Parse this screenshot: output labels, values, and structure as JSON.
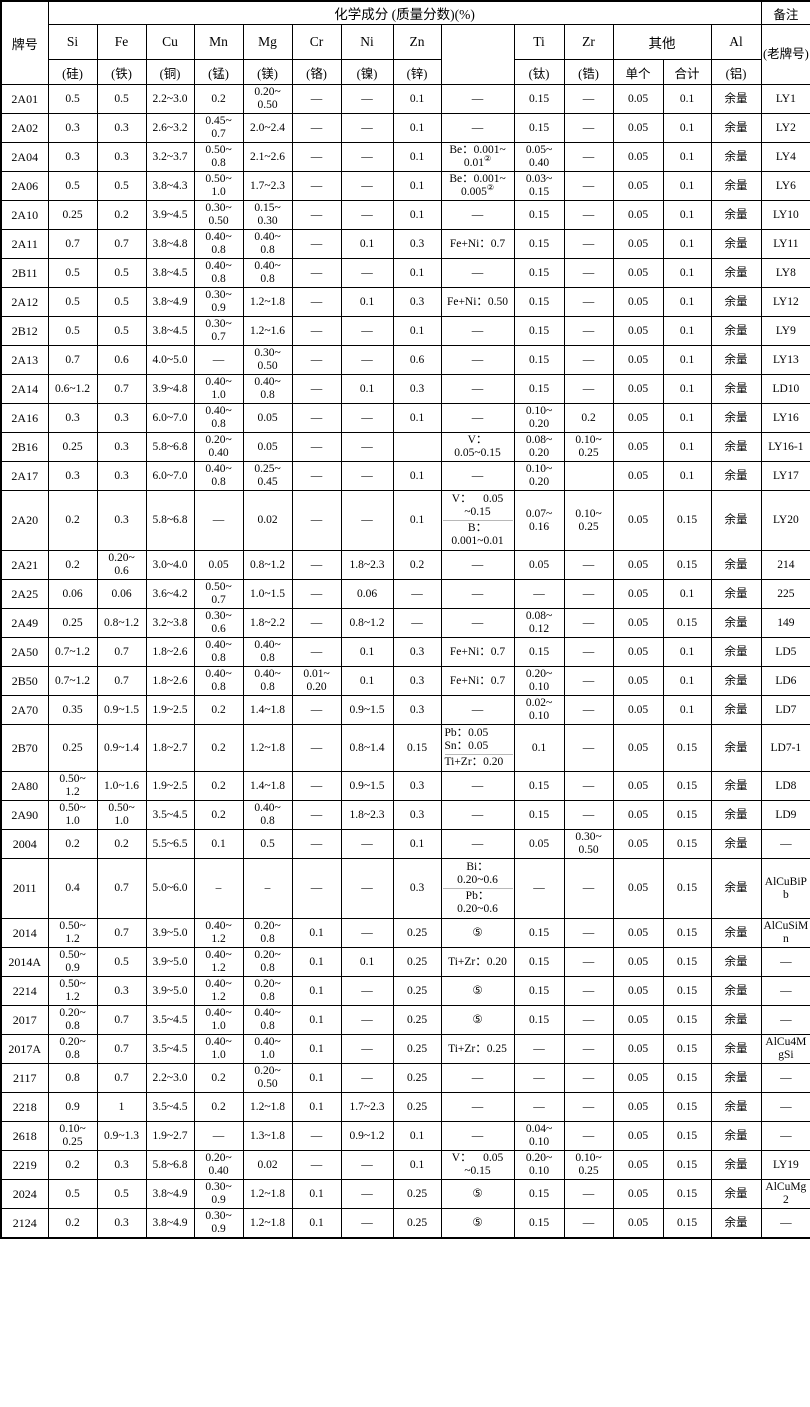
{
  "table": {
    "title": "化学成分 (质量分数)(%)",
    "grade_header": "牌号",
    "remark_header": "备注",
    "remark_subheader": "(老牌号)",
    "other_group_label": "其他",
    "other_sub_labels": [
      "单个",
      "合计"
    ],
    "element_columns": [
      {
        "symbol": "Si",
        "name": "(硅)"
      },
      {
        "symbol": "Fe",
        "name": "(铁)"
      },
      {
        "symbol": "Cu",
        "name": "(铜)"
      },
      {
        "symbol": "Mn",
        "name": "(锰)"
      },
      {
        "symbol": "Mg",
        "name": "(镁)"
      },
      {
        "symbol": "Cr",
        "name": "(铬)"
      },
      {
        "symbol": "Ni",
        "name": "(镍)"
      },
      {
        "symbol": "Zn",
        "name": "(锌)"
      },
      {
        "symbol": "Ti",
        "name": "(钛)"
      },
      {
        "symbol": "Zr",
        "name": "(锆)"
      },
      {
        "symbol": "Al",
        "name": "(铝)"
      }
    ],
    "rows": [
      {
        "grade": "2A01",
        "cells": [
          "0.5",
          "0.5",
          "2.2~3.0",
          "0.2",
          "0.20~\n0.50",
          "—",
          "—",
          "0.1",
          "—",
          "0.15",
          "—",
          "0.05",
          "0.1",
          "余量"
        ],
        "remark": "LY1"
      },
      {
        "grade": "2A02",
        "cells": [
          "0.3",
          "0.3",
          "2.6~3.2",
          "0.45~\n0.7",
          "2.0~2.4",
          "—",
          "—",
          "0.1",
          "—",
          "0.15",
          "—",
          "0.05",
          "0.1",
          "余量"
        ],
        "remark": "LY2"
      },
      {
        "grade": "2A04",
        "cells": [
          "0.3",
          "0.3",
          "3.2~3.7",
          "0.50~\n0.8",
          "2.1~2.6",
          "—",
          "—",
          "0.1",
          "Be：0.001~\n0.01②",
          "0.05~\n0.40",
          "—",
          "0.05",
          "0.1",
          "余量"
        ],
        "remark": "LY4"
      },
      {
        "grade": "2A06",
        "cells": [
          "0.5",
          "0.5",
          "3.8~4.3",
          "0.50~\n1.0",
          "1.7~2.3",
          "—",
          "—",
          "0.1",
          "Be：0.001~\n0.005②",
          "0.03~\n0.15",
          "—",
          "0.05",
          "0.1",
          "余量"
        ],
        "remark": "LY6"
      },
      {
        "grade": "2A10",
        "cells": [
          "0.25",
          "0.2",
          "3.9~4.5",
          "0.30~\n0.50",
          "0.15~\n0.30",
          "—",
          "—",
          "0.1",
          "—",
          "0.15",
          "—",
          "0.05",
          "0.1",
          "余量"
        ],
        "remark": "LY10"
      },
      {
        "grade": "2A11",
        "cells": [
          "0.7",
          "0.7",
          "3.8~4.8",
          "0.40~\n0.8",
          "0.40~\n0.8",
          "—",
          "0.1",
          "0.3",
          "Fe+Ni：0.7",
          "0.15",
          "—",
          "0.05",
          "0.1",
          "余量"
        ],
        "remark": "LY11"
      },
      {
        "grade": "2B11",
        "cells": [
          "0.5",
          "0.5",
          "3.8~4.5",
          "0.40~\n0.8",
          "0.40~\n0.8",
          "—",
          "—",
          "0.1",
          "—",
          "0.15",
          "—",
          "0.05",
          "0.1",
          "余量"
        ],
        "remark": "LY8"
      },
      {
        "grade": "2A12",
        "cells": [
          "0.5",
          "0.5",
          "3.8~4.9",
          "0.30~\n0.9",
          "1.2~1.8",
          "—",
          "0.1",
          "0.3",
          "Fe+Ni：0.50",
          "0.15",
          "—",
          "0.05",
          "0.1",
          "余量"
        ],
        "remark": "LY12"
      },
      {
        "grade": "2B12",
        "cells": [
          "0.5",
          "0.5",
          "3.8~4.5",
          "0.30~\n0.7",
          "1.2~1.6",
          "—",
          "—",
          "0.1",
          "—",
          "0.15",
          "—",
          "0.05",
          "0.1",
          "余量"
        ],
        "remark": "LY9"
      },
      {
        "grade": "2A13",
        "cells": [
          "0.7",
          "0.6",
          "4.0~5.0",
          "—",
          "0.30~\n0.50",
          "—",
          "—",
          "0.6",
          "—",
          "0.15",
          "—",
          "0.05",
          "0.1",
          "余量"
        ],
        "remark": "LY13"
      },
      {
        "grade": "2A14",
        "cells": [
          "0.6~1.2",
          "0.7",
          "3.9~4.8",
          "0.40~\n1.0",
          "0.40~\n0.8",
          "—",
          "0.1",
          "0.3",
          "—",
          "0.15",
          "—",
          "0.05",
          "0.1",
          "余量"
        ],
        "remark": "LD10"
      },
      {
        "grade": "2A16",
        "cells": [
          "0.3",
          "0.3",
          "6.0~7.0",
          "0.40~\n0.8",
          "0.05",
          "—",
          "—",
          "0.1",
          "—",
          "0.10~\n0.20",
          "0.2",
          "0.05",
          "0.1",
          "余量"
        ],
        "remark": "LY16"
      },
      {
        "grade": "2B16",
        "cells": [
          "0.25",
          "0.3",
          "5.8~6.8",
          "0.20~\n0.40",
          "0.05",
          "—",
          "—",
          "",
          "V：\n0.05~0.15",
          "0.08~\n0.20",
          "0.10~\n0.25",
          "0.05",
          "0.1",
          "余量"
        ],
        "remark": "LY16-1"
      },
      {
        "grade": "2A17",
        "cells": [
          "0.3",
          "0.3",
          "6.0~7.0",
          "0.40~\n0.8",
          "0.25~\n0.45",
          "—",
          "—",
          "0.1",
          "—",
          "0.10~\n0.20",
          "",
          "0.05",
          "0.1",
          "余量"
        ],
        "remark": "LY17"
      },
      {
        "grade": "2A20",
        "cells": [
          "0.2",
          "0.3",
          "5.8~6.8",
          "—",
          "0.02",
          "—",
          "—",
          "0.1",
          {
            "parts": [
              "V：    0.05\n~0.15",
              "B：\n0.001~0.01"
            ]
          },
          "0.07~\n0.16",
          "0.10~\n0.25",
          "0.05",
          "0.15",
          "余量"
        ],
        "remark": "LY20"
      },
      {
        "grade": "2A21",
        "cells": [
          "0.2",
          "0.20~\n0.6",
          "3.0~4.0",
          "0.05",
          "0.8~1.2",
          "—",
          "1.8~2.3",
          "0.2",
          "—",
          "0.05",
          "—",
          "0.05",
          "0.15",
          "余量"
        ],
        "remark": "214"
      },
      {
        "grade": "2A25",
        "cells": [
          "0.06",
          "0.06",
          "3.6~4.2",
          "0.50~\n0.7",
          "1.0~1.5",
          "—",
          "0.06",
          "—",
          "—",
          "—",
          "—",
          "0.05",
          "0.1",
          "余量"
        ],
        "remark": "225"
      },
      {
        "grade": "2A49",
        "cells": [
          "0.25",
          "0.8~1.2",
          "3.2~3.8",
          "0.30~\n0.6",
          "1.8~2.2",
          "—",
          "0.8~1.2",
          "—",
          "—",
          "0.08~\n0.12",
          "—",
          "0.05",
          "0.15",
          "余量"
        ],
        "remark": "149"
      },
      {
        "grade": "2A50",
        "cells": [
          "0.7~1.2",
          "0.7",
          "1.8~2.6",
          "0.40~\n0.8",
          "0.40~\n0.8",
          "—",
          "0.1",
          "0.3",
          "Fe+Ni：0.7",
          "0.15",
          "—",
          "0.05",
          "0.1",
          "余量"
        ],
        "remark": "LD5"
      },
      {
        "grade": "2B50",
        "cells": [
          "0.7~1.2",
          "0.7",
          "1.8~2.6",
          "0.40~\n0.8",
          "0.40~\n0.8",
          "0.01~\n0.20",
          "0.1",
          "0.3",
          "Fe+Ni：0.7",
          "0.20~\n0.10",
          "—",
          "0.05",
          "0.1",
          "余量"
        ],
        "remark": "LD6"
      },
      {
        "grade": "2A70",
        "cells": [
          "0.35",
          "0.9~1.5",
          "1.9~2.5",
          "0.2",
          "1.4~1.8",
          "—",
          "0.9~1.5",
          "0.3",
          "—",
          "0.02~\n0.10",
          "—",
          "0.05",
          "0.1",
          "余量"
        ],
        "remark": "LD7"
      },
      {
        "grade": "2B70",
        "cells": [
          "0.25",
          "0.9~1.4",
          "1.8~2.7",
          "0.2",
          "1.2~1.8",
          "—",
          "0.8~1.4",
          "0.15",
          {
            "align": "left",
            "parts": [
              "Pb：0.05\nSn：0.05",
              "Ti+Zr：0.20"
            ]
          },
          "0.1",
          "—",
          "0.05",
          "0.15",
          "余量"
        ],
        "remark": "LD7-1"
      },
      {
        "grade": "2A80",
        "cells": [
          "0.50~\n1.2",
          "1.0~1.6",
          "1.9~2.5",
          "0.2",
          "1.4~1.8",
          "—",
          "0.9~1.5",
          "0.3",
          "—",
          "0.15",
          "—",
          "0.05",
          "0.15",
          "余量"
        ],
        "remark": "LD8"
      },
      {
        "grade": "2A90",
        "cells": [
          "0.50~\n1.0",
          "0.50~\n1.0",
          "3.5~4.5",
          "0.2",
          "0.40~\n0.8",
          "—",
          "1.8~2.3",
          "0.3",
          "—",
          "0.15",
          "—",
          "0.05",
          "0.15",
          "余量"
        ],
        "remark": "LD9"
      },
      {
        "grade": "2004",
        "cells": [
          "0.2",
          "0.2",
          "5.5~6.5",
          "0.1",
          "0.5",
          "—",
          "—",
          "0.1",
          "—",
          "0.05",
          "0.30~\n0.50",
          "0.05",
          "0.15",
          "余量"
        ],
        "remark": "—"
      },
      {
        "grade": "2011",
        "cells": [
          "0.4",
          "0.7",
          "5.0~6.0",
          "–",
          "–",
          "—",
          "—",
          "0.3",
          {
            "parts": [
              "Bi：\n0.20~0.6",
              "Pb：\n0.20~0.6"
            ]
          },
          "—",
          "—",
          "0.05",
          "0.15",
          "余量"
        ],
        "remark": "AlCuBiPb"
      },
      {
        "grade": "2014",
        "cells": [
          "0.50~\n1.2",
          "0.7",
          "3.9~5.0",
          "0.40~\n1.2",
          "0.20~\n0.8",
          "0.1",
          "—",
          "0.25",
          "⑤",
          "0.15",
          "—",
          "0.05",
          "0.15",
          "余量"
        ],
        "remark": "AlCuSiMn"
      },
      {
        "grade": "2014A",
        "cells": [
          "0.50~\n0.9",
          "0.5",
          "3.9~5.0",
          "0.40~\n1.2",
          "0.20~\n0.8",
          "0.1",
          "0.1",
          "0.25",
          "Ti+Zr：0.20",
          "0.15",
          "—",
          "0.05",
          "0.15",
          "余量"
        ],
        "remark": "—"
      },
      {
        "grade": "2214",
        "cells": [
          "0.50~\n1.2",
          "0.3",
          "3.9~5.0",
          "0.40~\n1.2",
          "0.20~\n0.8",
          "0.1",
          "—",
          "0.25",
          "⑤",
          "0.15",
          "—",
          "0.05",
          "0.15",
          "余量"
        ],
        "remark": "—"
      },
      {
        "grade": "2017",
        "cells": [
          "0.20~\n0.8",
          "0.7",
          "3.5~4.5",
          "0.40~\n1.0",
          "0.40~\n0.8",
          "0.1",
          "—",
          "0.25",
          "⑤",
          "0.15",
          "—",
          "0.05",
          "0.15",
          "余量"
        ],
        "remark": "—"
      },
      {
        "grade": "2017A",
        "cells": [
          "0.20~\n0.8",
          "0.7",
          "3.5~4.5",
          "0.40~\n1.0",
          "0.40~\n1.0",
          "0.1",
          "—",
          "0.25",
          "Ti+Zr：0.25",
          "—",
          "—",
          "0.05",
          "0.15",
          "余量"
        ],
        "remark": "AlCu4MgSi"
      },
      {
        "grade": "2117",
        "cells": [
          "0.8",
          "0.7",
          "2.2~3.0",
          "0.2",
          "0.20~\n0.50",
          "0.1",
          "—",
          "0.25",
          "—",
          "—",
          "—",
          "0.05",
          "0.15",
          "余量"
        ],
        "remark": "—"
      },
      {
        "grade": "2218",
        "cells": [
          "0.9",
          "1",
          "3.5~4.5",
          "0.2",
          "1.2~1.8",
          "0.1",
          "1.7~2.3",
          "0.25",
          "—",
          "—",
          "—",
          "0.05",
          "0.15",
          "余量"
        ],
        "remark": "—"
      },
      {
        "grade": "2618",
        "cells": [
          "0.10~\n0.25",
          "0.9~1.3",
          "1.9~2.7",
          "—",
          "1.3~1.8",
          "—",
          "0.9~1.2",
          "0.1",
          "—",
          "0.04~\n0.10",
          "—",
          "0.05",
          "0.15",
          "余量"
        ],
        "remark": "—"
      },
      {
        "grade": "2219",
        "cells": [
          "0.2",
          "0.3",
          "5.8~6.8",
          "0.20~\n0.40",
          "0.02",
          "—",
          "—",
          "0.1",
          "V：    0.05\n~0.15",
          "0.20~\n0.10",
          "0.10~\n0.25",
          "0.05",
          "0.15",
          "余量"
        ],
        "remark": "LY19"
      },
      {
        "grade": "2024",
        "cells": [
          "0.5",
          "0.5",
          "3.8~4.9",
          "0.30~\n0.9",
          "1.2~1.8",
          "0.1",
          "—",
          "0.25",
          "⑤",
          "0.15",
          "—",
          "0.05",
          "0.15",
          "余量"
        ],
        "remark": "AlCuMg2"
      },
      {
        "grade": "2124",
        "cells": [
          "0.2",
          "0.3",
          "3.8~4.9",
          "0.30~\n0.9",
          "1.2~1.8",
          "0.1",
          "—",
          "0.25",
          "⑤",
          "0.15",
          "—",
          "0.05",
          "0.15",
          "余量"
        ],
        "remark": "—"
      }
    ]
  }
}
